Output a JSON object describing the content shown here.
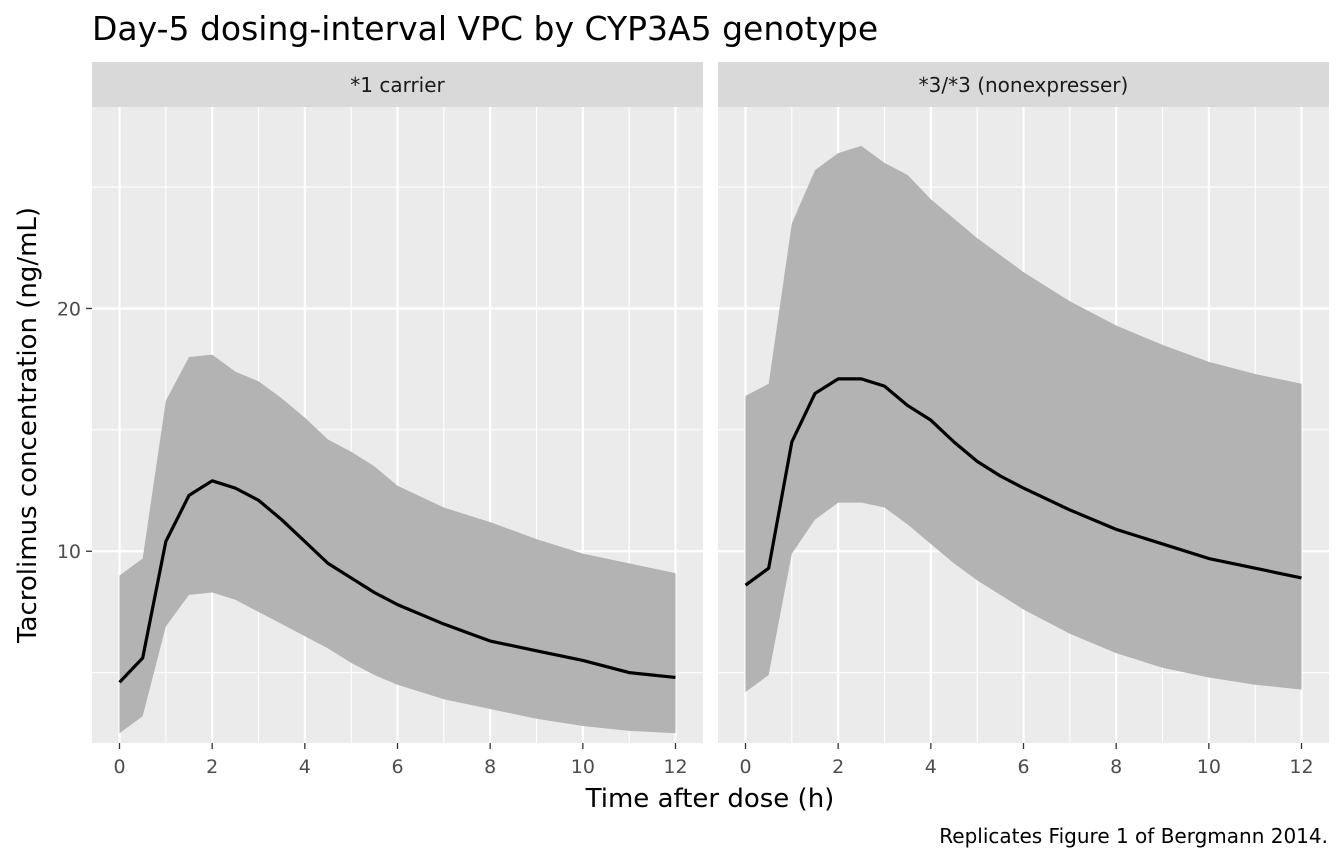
{
  "chart_data": {
    "type": "area",
    "title": "Day-5 dosing-interval VPC by CYP3A5 genotype",
    "xlabel": "Time after dose (h)",
    "ylabel": "Tacrolimus concentration (ng/mL)",
    "caption": "Replicates Figure 1 of Bergmann 2014.",
    "xlim": [
      0,
      12
    ],
    "ylim": [
      2.1,
      28.3
    ],
    "x_ticks": [
      0,
      2,
      4,
      6,
      8,
      10,
      12
    ],
    "y_ticks": [
      10,
      20
    ],
    "grid": true,
    "colors": {
      "panel_background": "#ebebeb",
      "strip_background": "#d9d9d9",
      "band_fill": "#b3b3b3",
      "median_line": "#000000",
      "grid": "#ffffff"
    },
    "facets": [
      {
        "label": "*1 carrier",
        "x": [
          0,
          0.5,
          1,
          1.5,
          2,
          2.5,
          3,
          3.5,
          4,
          4.5,
          5,
          5.5,
          6,
          7,
          8,
          9,
          10,
          11,
          12
        ],
        "median": [
          4.6,
          5.6,
          10.4,
          12.3,
          12.9,
          12.6,
          12.1,
          11.3,
          10.4,
          9.5,
          8.9,
          8.3,
          7.8,
          7.0,
          6.3,
          5.9,
          5.5,
          5.0,
          4.8
        ],
        "lower": [
          2.5,
          3.2,
          6.9,
          8.2,
          8.3,
          8.0,
          7.5,
          7.0,
          6.5,
          6.0,
          5.4,
          4.9,
          4.5,
          3.9,
          3.5,
          3.1,
          2.8,
          2.6,
          2.5
        ],
        "upper": [
          9.0,
          9.7,
          16.2,
          18.0,
          18.1,
          17.4,
          17.0,
          16.3,
          15.5,
          14.6,
          14.1,
          13.5,
          12.7,
          11.8,
          11.2,
          10.5,
          9.9,
          9.5,
          9.1
        ]
      },
      {
        "label": "*3/*3 (nonexpresser)",
        "x": [
          0,
          0.5,
          1,
          1.5,
          2,
          2.5,
          3,
          3.5,
          4,
          4.5,
          5,
          5.5,
          6,
          7,
          8,
          9,
          10,
          11,
          12
        ],
        "median": [
          8.6,
          9.3,
          14.5,
          16.5,
          17.1,
          17.1,
          16.8,
          16.0,
          15.4,
          14.5,
          13.7,
          13.1,
          12.6,
          11.7,
          10.9,
          10.3,
          9.7,
          9.3,
          8.9
        ],
        "lower": [
          4.2,
          4.9,
          9.9,
          11.3,
          12.0,
          12.0,
          11.8,
          11.1,
          10.3,
          9.5,
          8.8,
          8.2,
          7.6,
          6.6,
          5.8,
          5.2,
          4.8,
          4.5,
          4.3
        ],
        "upper": [
          16.4,
          16.9,
          23.5,
          25.7,
          26.4,
          26.7,
          26.0,
          25.5,
          24.5,
          23.7,
          22.9,
          22.2,
          21.5,
          20.3,
          19.3,
          18.5,
          17.8,
          17.3,
          16.9
        ]
      }
    ]
  }
}
